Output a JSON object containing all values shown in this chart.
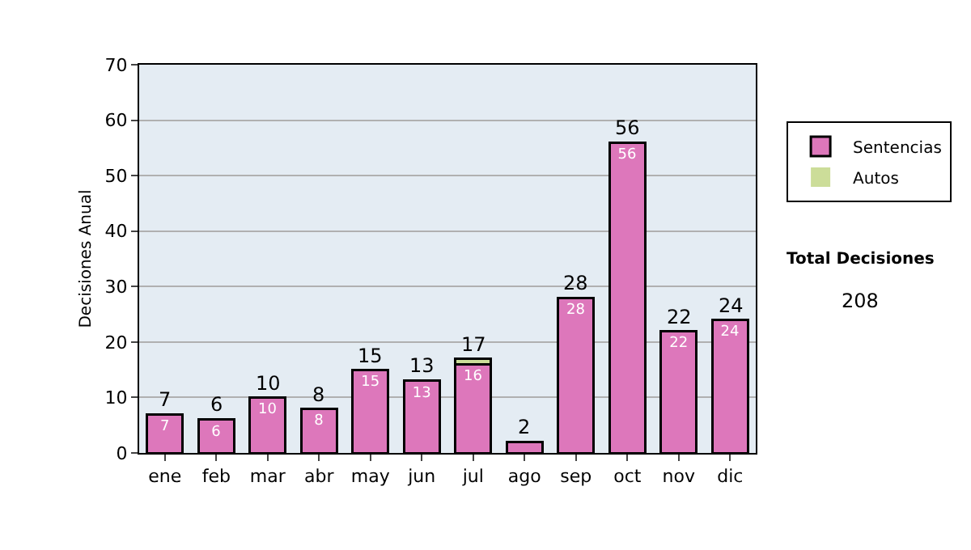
{
  "chart_data": {
    "type": "bar",
    "stacked": true,
    "ylabel": "Decisiones Anual",
    "categories": [
      "ene",
      "feb",
      "mar",
      "abr",
      "may",
      "jun",
      "jul",
      "ago",
      "sep",
      "oct",
      "nov",
      "dic"
    ],
    "series": [
      {
        "name": "Sentencias",
        "color": "#dd77bb",
        "values": [
          7,
          6,
          10,
          8,
          15,
          13,
          16,
          2,
          28,
          56,
          22,
          24
        ],
        "value_labels": [
          "7",
          "6",
          "10",
          "8",
          "15",
          "13",
          "16",
          null,
          "28",
          "56",
          "22",
          "24"
        ]
      },
      {
        "name": "Autos",
        "color": "#ccdd99",
        "values": [
          0,
          0,
          0,
          0,
          0,
          0,
          1,
          0,
          0,
          0,
          0,
          0
        ],
        "value_labels": [
          null,
          null,
          null,
          null,
          null,
          null,
          null,
          null,
          null,
          null,
          null,
          null
        ]
      }
    ],
    "totals": [
      "7",
      "6",
      "10",
      "8",
      "15",
      "13",
      "17",
      "2",
      "28",
      "56",
      "22",
      "24"
    ],
    "ylim": [
      0,
      70
    ],
    "yticks": [
      0,
      10,
      20,
      30,
      40,
      50,
      60,
      70
    ],
    "grid": "y",
    "legend": "right",
    "annotations": [
      "Total Decisiones",
      "208"
    ]
  }
}
